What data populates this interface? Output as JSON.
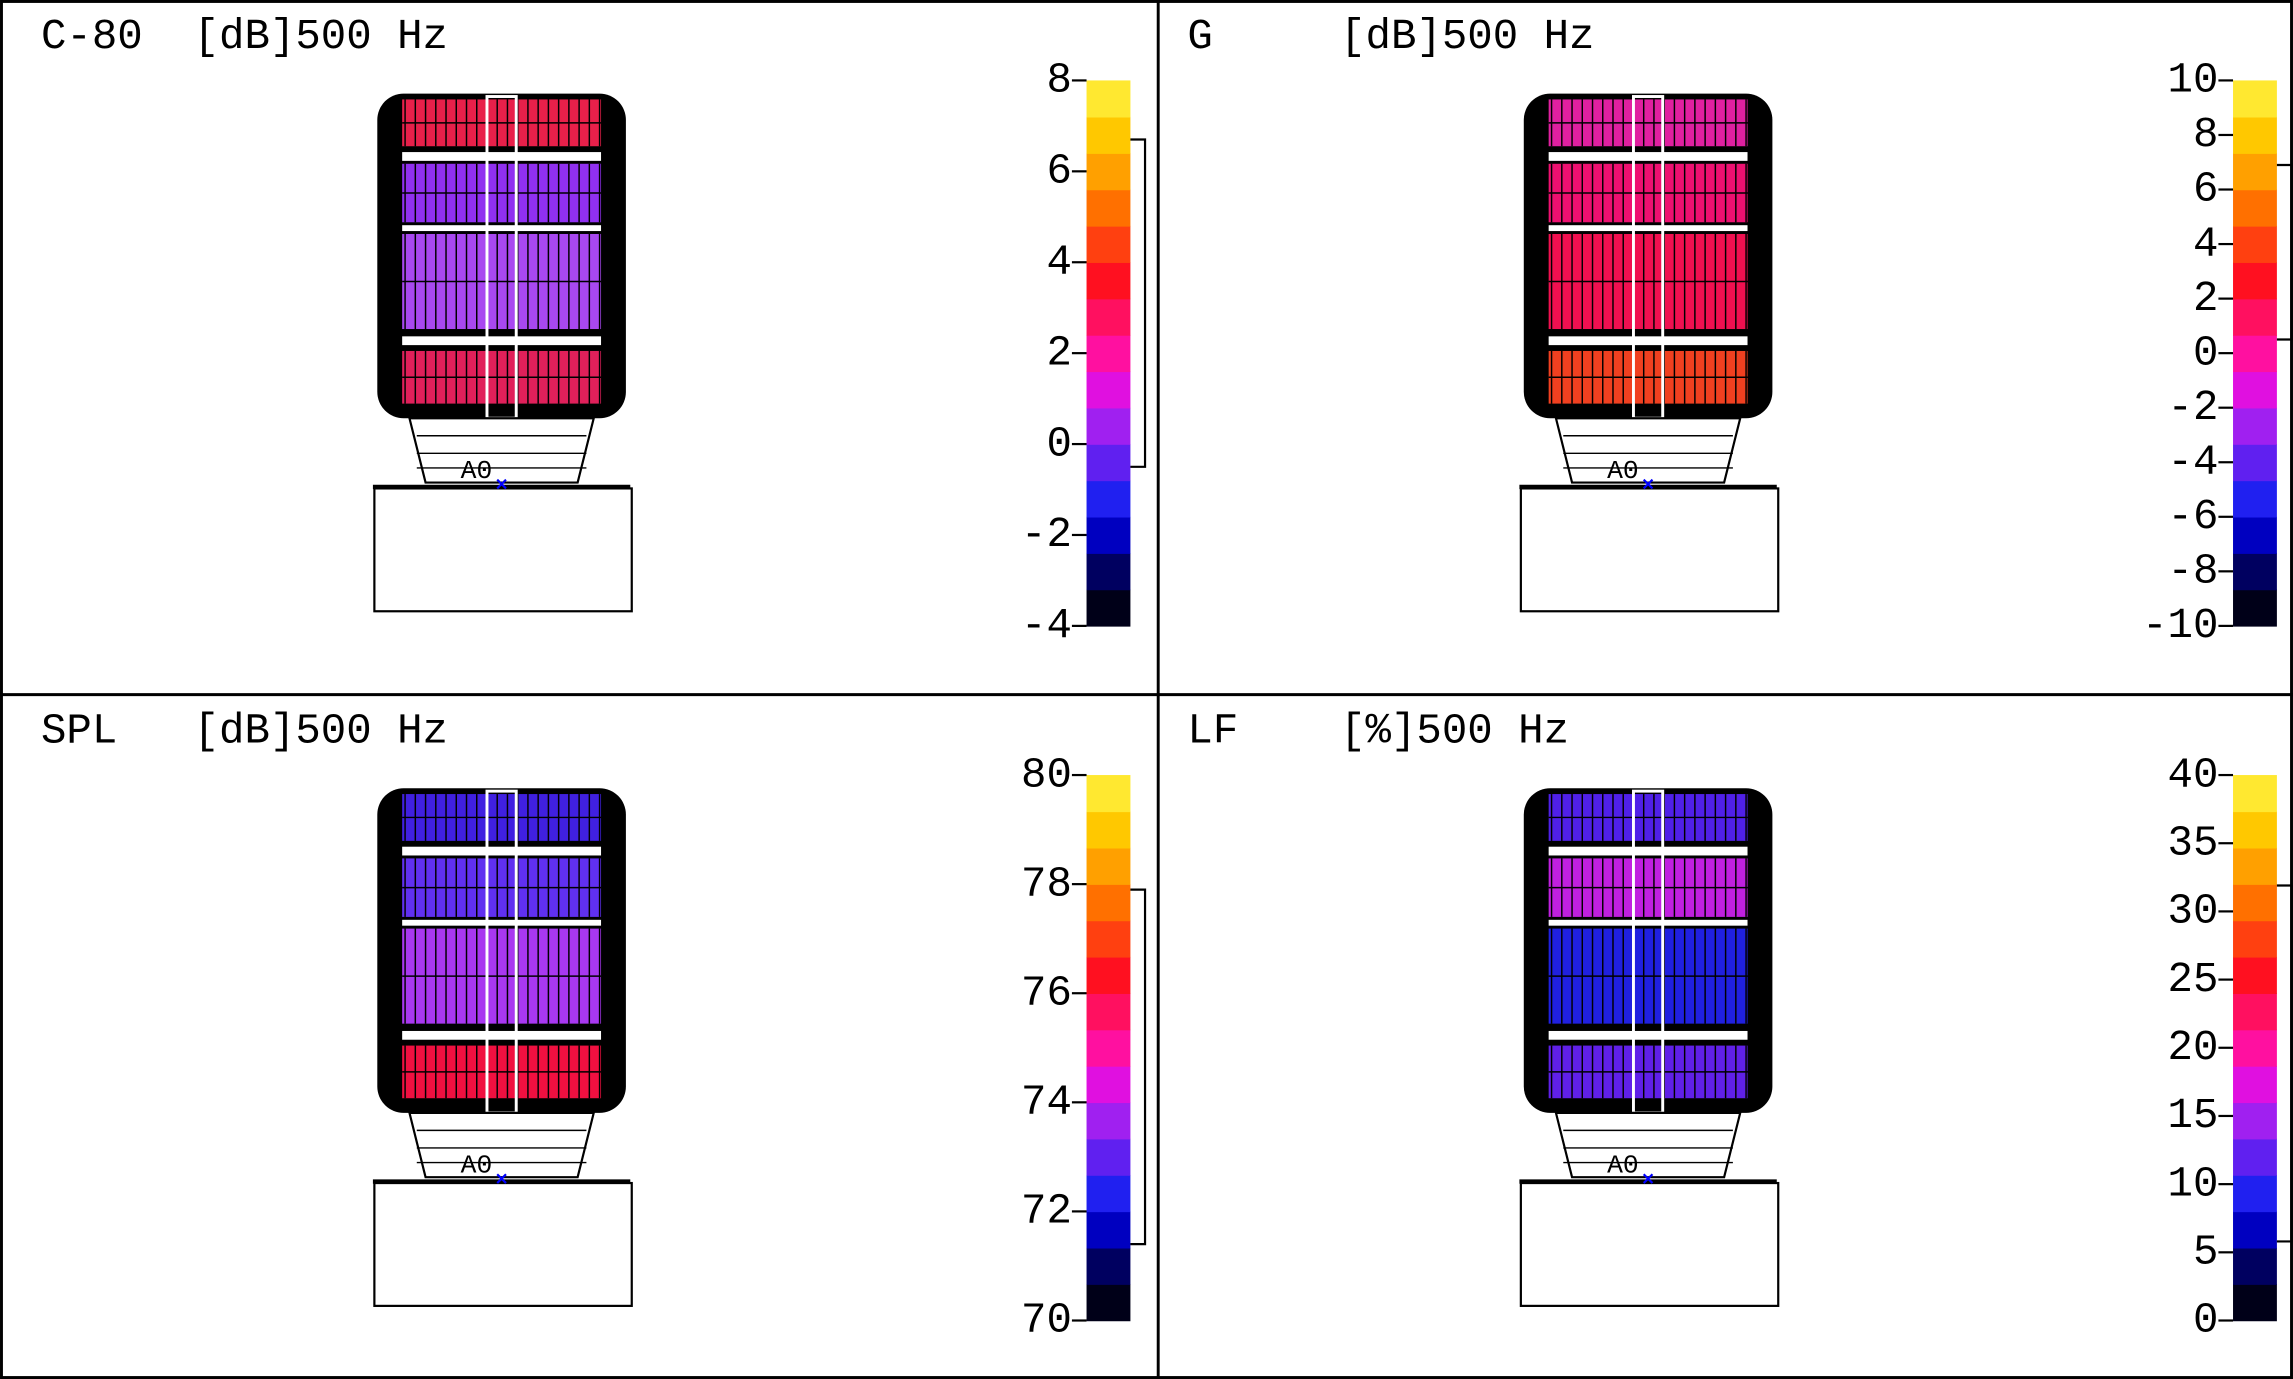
{
  "colormap": [
    "#000018",
    "#000060",
    "#0000c0",
    "#2020f0",
    "#6020f0",
    "#a020f0",
    "#e010e0",
    "#ff10a0",
    "#ff1060",
    "#ff1020",
    "#ff4010",
    "#ff7000",
    "#ffa000",
    "#ffc800",
    "#ffe830"
  ],
  "chart_data": [
    {
      "type": "heatmap",
      "title": "C-80  [dB]500 Hz",
      "source": "A0",
      "ylim": [
        -4,
        8
      ],
      "yticks": [
        -4,
        -2,
        0,
        2,
        4,
        6,
        8
      ],
      "range": [
        -0.5,
        6.7
      ],
      "zones": [
        "#e8204a",
        "#9030f0",
        "#a848f0",
        "#e0205a"
      ]
    },
    {
      "type": "heatmap",
      "title": "G     [dB]500 Hz",
      "source": "A0",
      "ylim": [
        -10,
        10
      ],
      "yticks": [
        -10,
        -8,
        -6,
        -4,
        -2,
        0,
        2,
        4,
        6,
        8,
        10
      ],
      "range": [
        0.5,
        6.9
      ],
      "zones": [
        "#e020a0",
        "#ee1070",
        "#f01050",
        "#f04020"
      ]
    },
    {
      "type": "heatmap",
      "title": "SPL   [dB]500 Hz",
      "source": "A0",
      "ylim": [
        70,
        80
      ],
      "yticks": [
        70,
        72,
        74,
        76,
        78,
        80
      ],
      "range": [
        71.4,
        77.9
      ],
      "zones": [
        "#4020e0",
        "#6030f0",
        "#a838f0",
        "#f01040"
      ]
    },
    {
      "type": "heatmap",
      "title": "LF    [%]500 Hz",
      "source": "A0",
      "ylim": [
        0,
        40
      ],
      "yticks": [
        0,
        5,
        10,
        15,
        20,
        25,
        30,
        35,
        40
      ],
      "range": [
        5.8,
        31.9
      ],
      "zones": [
        "#5020e8",
        "#c020e0",
        "#2020e0",
        "#6020e8"
      ]
    }
  ]
}
